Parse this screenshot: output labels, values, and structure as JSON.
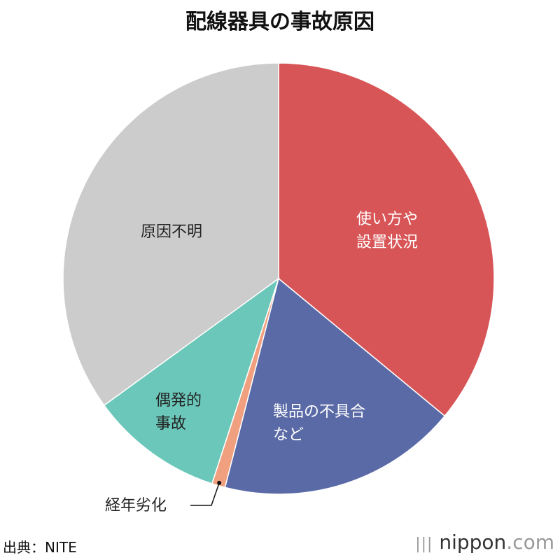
{
  "chart_data": {
    "type": "pie",
    "title": "配線器具の事故原因",
    "categories": [
      "使い方や\n設置状況",
      "製品の不具合\nなど",
      "経年劣化",
      "偶発的\n事故",
      "原因不明"
    ],
    "values": [
      36,
      18,
      1,
      10,
      35
    ],
    "colors": [
      "#d85557",
      "#5a6aa6",
      "#f0a07f",
      "#6bc7b9",
      "#cccccc"
    ],
    "label_colors": [
      "#ffffff",
      "#ffffff",
      "#222222",
      "#222222",
      "#222222"
    ]
  },
  "source": "出典：NITE",
  "logo": {
    "main": "nippon",
    "suffix": ".com"
  }
}
